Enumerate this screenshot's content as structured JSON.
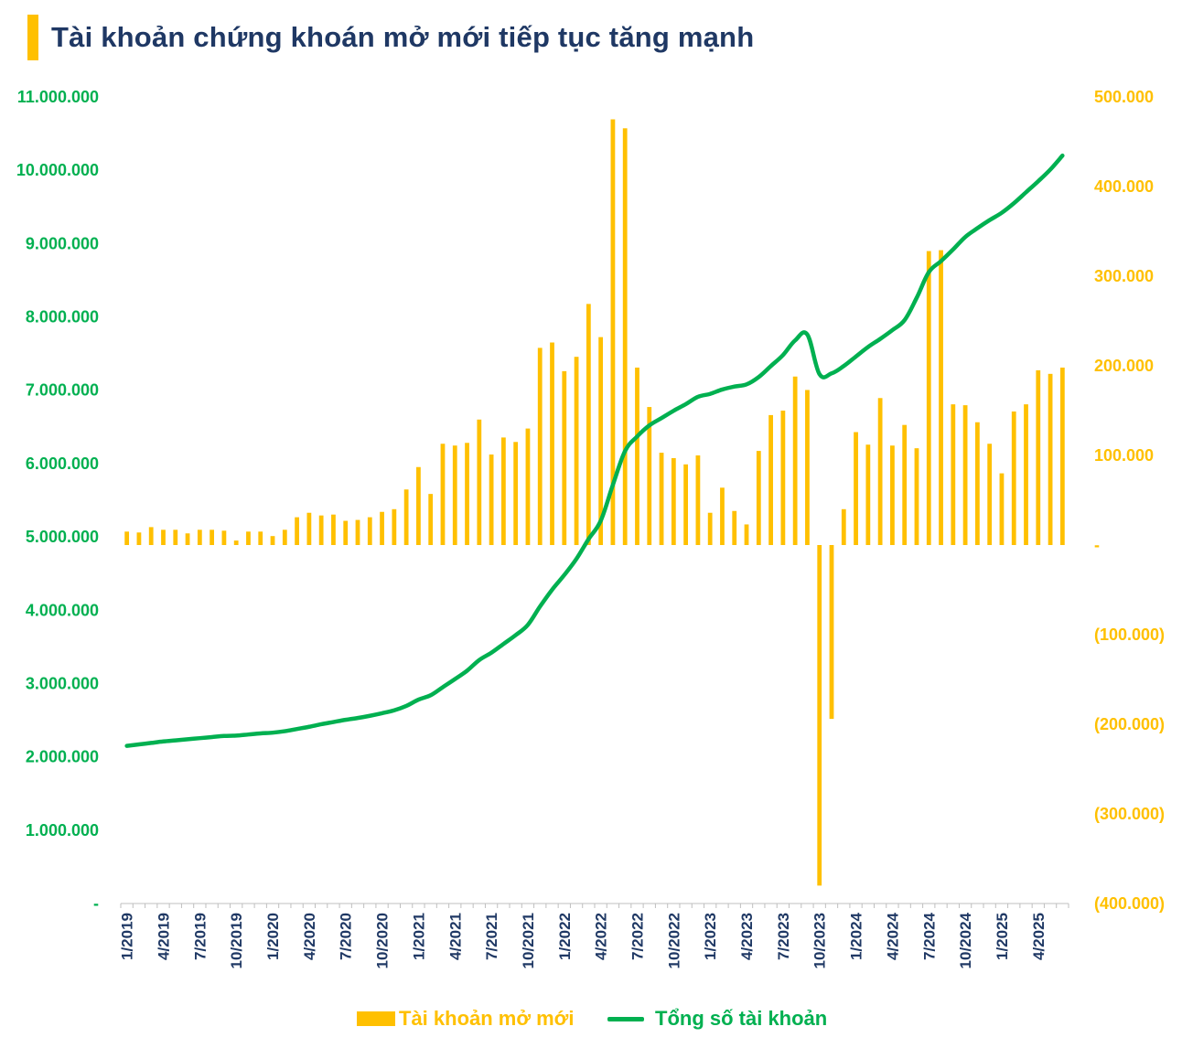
{
  "title": "Tài khoản chứng khoán mở mới tiếp tục tăng mạnh",
  "colors": {
    "title": "#1F3864",
    "title_bar": "#FFC000",
    "bars": "#FFC000",
    "line": "#00B050",
    "left_axis": "#00B050",
    "right_axis": "#FFC000",
    "x_axis": "#1F3864"
  },
  "legend": {
    "bar_label": "Tài khoản mở mới",
    "line_label": "Tổng số tài khoản"
  },
  "chart_data": {
    "type": "bar+line",
    "title": "Tài khoản chứng khoán mở mới tiếp tục tăng mạnh",
    "y_left": {
      "range": [
        0,
        11000000
      ],
      "ticks": [
        0,
        1000000,
        2000000,
        3000000,
        4000000,
        5000000,
        6000000,
        7000000,
        8000000,
        9000000,
        10000000,
        11000000
      ],
      "tick_labels": [
        "-",
        "1.000.000",
        "2.000.000",
        "3.000.000",
        "4.000.000",
        "5.000.000",
        "6.000.000",
        "7.000.000",
        "8.000.000",
        "9.000.000",
        "10.000.000",
        "11.000.000"
      ]
    },
    "y_right": {
      "range": [
        -400000,
        500000
      ],
      "ticks": [
        500000,
        400000,
        300000,
        200000,
        100000,
        0,
        -100000,
        -200000,
        -300000,
        -400000
      ],
      "tick_labels": [
        "500.000",
        "400.000",
        "300.000",
        "200.000",
        "100.000",
        "-",
        "(100.000)",
        "(200.000)",
        "(300.000)",
        "(400.000)"
      ]
    },
    "x_tick_labels": [
      "1/2019",
      "4/2019",
      "7/2019",
      "10/2019",
      "1/2020",
      "4/2020",
      "7/2020",
      "10/2020",
      "1/2021",
      "4/2021",
      "7/2021",
      "10/2021",
      "1/2022",
      "4/2022",
      "7/2022",
      "10/2022",
      "1/2023",
      "4/2023",
      "7/2023",
      "10/2023",
      "1/2024",
      "4/2024",
      "7/2024",
      "10/2024",
      "1/2025",
      "4/2025"
    ],
    "months": [
      "1/2019",
      "2/2019",
      "3/2019",
      "4/2019",
      "5/2019",
      "6/2019",
      "7/2019",
      "8/2019",
      "9/2019",
      "10/2019",
      "11/2019",
      "12/2019",
      "1/2020",
      "2/2020",
      "3/2020",
      "4/2020",
      "5/2020",
      "6/2020",
      "7/2020",
      "8/2020",
      "9/2020",
      "10/2020",
      "11/2020",
      "12/2020",
      "1/2021",
      "2/2021",
      "3/2021",
      "4/2021",
      "5/2021",
      "6/2021",
      "7/2021",
      "8/2021",
      "9/2021",
      "10/2021",
      "11/2021",
      "12/2021",
      "1/2022",
      "2/2022",
      "3/2022",
      "4/2022",
      "5/2022",
      "6/2022",
      "7/2022",
      "8/2022",
      "9/2022",
      "10/2022",
      "11/2022",
      "12/2022",
      "1/2023",
      "2/2023",
      "3/2023",
      "4/2023",
      "5/2023",
      "6/2023",
      "7/2023",
      "8/2023",
      "9/2023",
      "10/2023",
      "11/2023",
      "12/2023",
      "1/2024",
      "2/2024",
      "3/2024",
      "4/2024",
      "5/2024",
      "6/2024",
      "7/2024",
      "8/2024",
      "9/2024",
      "10/2024",
      "11/2024",
      "12/2024",
      "1/2025",
      "2/2025",
      "3/2025",
      "4/2025",
      "5/2025",
      "6/2025"
    ],
    "series": [
      {
        "name": "Tài khoản mở mới",
        "type": "bar",
        "axis": "right",
        "values": [
          15000,
          14000,
          20000,
          17000,
          17000,
          13000,
          17000,
          17000,
          16000,
          5000,
          15000,
          15000,
          10000,
          17000,
          31000,
          36000,
          33000,
          34000,
          27000,
          28000,
          31000,
          37000,
          40000,
          62000,
          87000,
          57000,
          113000,
          111000,
          114000,
          140000,
          101000,
          120000,
          115000,
          130000,
          220000,
          226000,
          194000,
          210000,
          269000,
          232000,
          475000,
          465000,
          198000,
          154000,
          103000,
          97000,
          90000,
          100000,
          36000,
          64000,
          38000,
          23000,
          105000,
          145000,
          150000,
          188000,
          173000,
          -380000,
          -194000,
          40000,
          126000,
          112000,
          164000,
          111000,
          134000,
          108000,
          328000,
          329000,
          157000,
          156000,
          137000,
          113000,
          80000,
          149000,
          157000,
          195000,
          191000,
          198000
        ]
      },
      {
        "name": "Tổng số tài khoản",
        "type": "line",
        "axis": "left",
        "values": [
          2150000,
          2170000,
          2190000,
          2210000,
          2225000,
          2240000,
          2255000,
          2270000,
          2285000,
          2290000,
          2305000,
          2320000,
          2330000,
          2350000,
          2380000,
          2410000,
          2445000,
          2475000,
          2505000,
          2530000,
          2560000,
          2595000,
          2635000,
          2695000,
          2780000,
          2840000,
          2950000,
          3060000,
          3175000,
          3320000,
          3420000,
          3540000,
          3660000,
          3800000,
          4050000,
          4280000,
          4480000,
          4700000,
          4970000,
          5220000,
          5710000,
          6170000,
          6370000,
          6520000,
          6620000,
          6720000,
          6810000,
          6910000,
          6950000,
          7010000,
          7050000,
          7080000,
          7180000,
          7330000,
          7480000,
          7680000,
          7760000,
          7220000,
          7230000,
          7330000,
          7460000,
          7590000,
          7700000,
          7820000,
          7955000,
          8260000,
          8610000,
          8760000,
          8920000,
          9090000,
          9210000,
          9320000,
          9420000,
          9550000,
          9700000,
          9850000,
          10010000,
          10200000
        ]
      }
    ],
    "legend_position": "bottom",
    "grid": false
  }
}
